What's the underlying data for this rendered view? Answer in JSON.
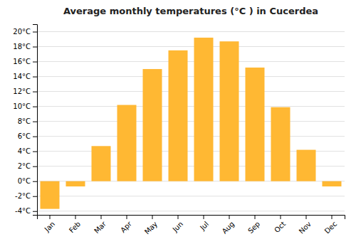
{
  "chart_data": {
    "type": "bar",
    "title": "Average monthly temperatures (°C ) in Cucerdea",
    "categories": [
      "Jan",
      "Feb",
      "Mar",
      "Apr",
      "May",
      "Jun",
      "Jul",
      "Aug",
      "Sep",
      "Oct",
      "Nov",
      "Dec"
    ],
    "values": [
      -3.7,
      -0.7,
      4.7,
      10.2,
      15.0,
      17.5,
      19.2,
      18.7,
      15.2,
      9.9,
      4.2,
      -0.7
    ],
    "color": "#FFB833",
    "ylim": [
      -4.5,
      21.0
    ],
    "yticks": [
      {
        "value": -4,
        "label": "-4°C"
      },
      {
        "value": -2,
        "label": "-2°C"
      },
      {
        "value": 0,
        "label": "0°C"
      },
      {
        "value": 2,
        "label": "2°C"
      },
      {
        "value": 4,
        "label": "4°C"
      },
      {
        "value": 6,
        "label": "6°C"
      },
      {
        "value": 8,
        "label": "8°C"
      },
      {
        "value": 10,
        "label": "10°C"
      },
      {
        "value": 12,
        "label": "12°C"
      },
      {
        "value": 14,
        "label": "14°C"
      },
      {
        "value": 16,
        "label": "16°C"
      },
      {
        "value": 18,
        "label": "18°C"
      },
      {
        "value": 20,
        "label": "20°C"
      }
    ],
    "grid": true
  }
}
